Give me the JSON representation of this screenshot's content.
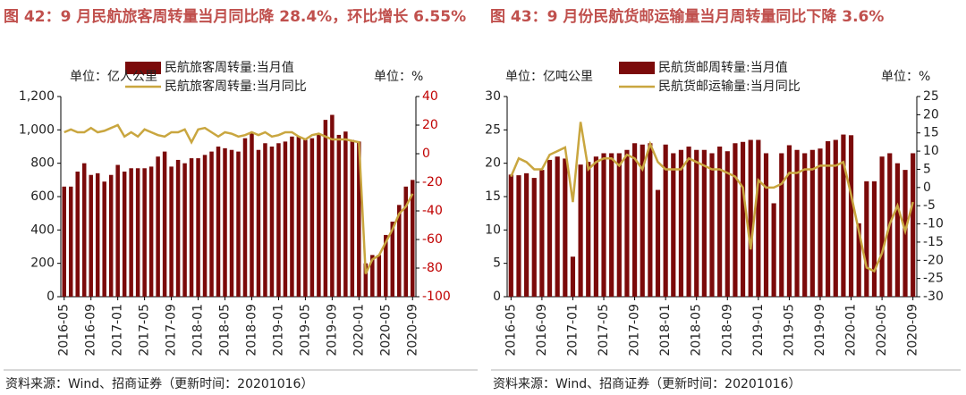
{
  "chart_data": [
    {
      "type": "bar_line",
      "title": "图 42：9 月民航旅客周转量当月同比降 28.4%，环比增长 6.55%",
      "y_label": "单位：亿人公里",
      "y2_label": "单位：%",
      "source": "资料来源：Wind、招商证券（更新时间：20201016）",
      "categories": [
        "2016-05",
        null,
        null,
        null,
        "2016-09",
        null,
        null,
        null,
        "2017-01",
        null,
        null,
        null,
        "2017-05",
        null,
        null,
        null,
        "2017-09",
        null,
        null,
        null,
        "2018-01",
        null,
        null,
        null,
        "2018-05",
        null,
        null,
        null,
        "2018-09",
        null,
        null,
        null,
        "2019-01",
        null,
        null,
        null,
        "2019-05",
        null,
        null,
        null,
        "2019-09",
        null,
        null,
        null,
        "2020-01",
        null,
        null,
        null,
        "2020-05",
        null,
        null,
        null,
        "2020-09"
      ],
      "series": [
        {
          "name": "民航旅客周转量:当月值",
          "type": "bar",
          "color": "#7b0a0a",
          "values": [
            660,
            660,
            750,
            800,
            730,
            740,
            690,
            730,
            790,
            750,
            770,
            770,
            770,
            780,
            840,
            870,
            780,
            820,
            800,
            830,
            830,
            850,
            870,
            900,
            890,
            880,
            870,
            950,
            980,
            880,
            920,
            900,
            920,
            930,
            960,
            960,
            940,
            950,
            970,
            1060,
            1090,
            970,
            990,
            940,
            930,
            200,
            250,
            250,
            370,
            450,
            550,
            660,
            700
          ]
        },
        {
          "name": "民航旅客周转量:当月同比",
          "type": "line",
          "axis": "y2",
          "color": "#c9a63f",
          "values": [
            15,
            17,
            15,
            15,
            18,
            15,
            16,
            18,
            20,
            12,
            15,
            12,
            17,
            15,
            13,
            12,
            15,
            15,
            17,
            8,
            17,
            18,
            15,
            12,
            15,
            14,
            12,
            13,
            15,
            13,
            15,
            12,
            13,
            15,
            15,
            12,
            10,
            13,
            14,
            12,
            10,
            10,
            10,
            9,
            8,
            -84,
            -74,
            -71,
            -62,
            -53,
            -42,
            -37,
            -28
          ]
        }
      ],
      "ylim": [
        0,
        1200
      ],
      "yticks": [
        0,
        200,
        400,
        600,
        800,
        {
          "value": 1000,
          "label": "1,000"
        },
        {
          "value": 1200,
          "label": "1,200"
        }
      ],
      "y2lim": [
        -100,
        40
      ],
      "y2ticks": [
        -100,
        -80,
        -60,
        -40,
        -20,
        0,
        20,
        40
      ],
      "y2tick_color": "#c00000",
      "legend": "top"
    },
    {
      "type": "bar_line",
      "title": "图 43：9 月份民航货邮运输量当月周转量同比下降 3.6%",
      "y_label": "单位：亿吨公里",
      "y2_label": "单位：%",
      "source": "资料来源：Wind、招商证券（更新时间：20201016）",
      "categories": [
        "2016-05",
        null,
        null,
        null,
        "2016-09",
        null,
        null,
        null,
        "2017-01",
        null,
        null,
        null,
        "2017-05",
        null,
        null,
        null,
        "2017-09",
        null,
        null,
        null,
        "2018-01",
        null,
        null,
        null,
        "2018-05",
        null,
        null,
        null,
        "2018-09",
        null,
        null,
        null,
        "2019-01",
        null,
        null,
        null,
        "2019-05",
        null,
        null,
        null,
        "2019-09",
        null,
        null,
        null,
        "2020-01",
        null,
        null,
        null,
        "2020-05",
        null,
        null,
        null,
        "2020-09"
      ],
      "series": [
        {
          "name": "民航货邮周转量:当月值",
          "type": "bar",
          "color": "#7b0a0a",
          "values": [
            18.3,
            18.2,
            18.5,
            17.8,
            19,
            20.5,
            21,
            20.7,
            6,
            19.8,
            20.2,
            21,
            21.5,
            21.5,
            21.5,
            22,
            23,
            22.8,
            23,
            16,
            22.8,
            21.5,
            22,
            22.5,
            22,
            22,
            21.5,
            22.5,
            21.8,
            23,
            23.2,
            23.5,
            23.5,
            21.5,
            14,
            21.5,
            22.7,
            22,
            21.5,
            22,
            22.2,
            23.3,
            23.5,
            24.3,
            24.2,
            11,
            17.3,
            17.3,
            21,
            21.5,
            20,
            19,
            21.5
          ]
        },
        {
          "name": "民航货邮运输量:当月同比",
          "type": "line",
          "axis": "y2",
          "color": "#c9a63f",
          "values": [
            3,
            8,
            7,
            5,
            5,
            9,
            10,
            11,
            -4,
            18,
            5,
            7,
            8,
            8,
            6,
            9,
            8,
            5,
            12,
            7,
            5,
            5,
            5,
            8,
            7,
            6,
            5,
            5,
            4,
            3,
            0,
            -17,
            2,
            0,
            0,
            1,
            4,
            4,
            5,
            5,
            6,
            6,
            6,
            7,
            -2,
            -12,
            -22,
            -23,
            -18,
            -10,
            -5,
            -12,
            -4
          ]
        }
      ],
      "ylim": [
        0,
        30
      ],
      "yticks": [
        0,
        5,
        10,
        15,
        20,
        25,
        30
      ],
      "y2lim": [
        -30,
        25
      ],
      "y2ticks": [
        -30,
        -25,
        -20,
        -15,
        -10,
        -5,
        0,
        5,
        10,
        15,
        20,
        25
      ],
      "legend": "top"
    }
  ]
}
